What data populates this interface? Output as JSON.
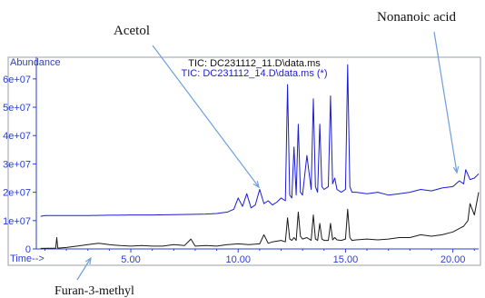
{
  "annotations": {
    "acetol": "Acetol",
    "nonanoic": "Nonanoic acid",
    "furan": "Furan-3-methyl"
  },
  "header": {
    "abundance": "Abundance",
    "tic_black": "TIC: DC231112_11.D\\data.ms",
    "tic_blue": "TIC: DC231112_14.D\\data.ms (*)",
    "time_label": "Time-->"
  },
  "colors": {
    "series_black": "#1a1a1a",
    "series_blue": "#1c1cd6",
    "label_blue": "#2a3fd0",
    "annotation_arrow": "#6f9fd8",
    "frame": "#9aa0a8"
  },
  "chart_data": {
    "type": "line",
    "xlabel": "Time-->",
    "ylabel": "Abundance",
    "xlim": [
      0.6,
      21.2
    ],
    "ylim": [
      0,
      67000000
    ],
    "x_ticks": [
      5,
      10,
      15,
      20
    ],
    "x_tick_labels": [
      "5.00",
      "10.00",
      "15.00",
      "20.00"
    ],
    "y_ticks": [
      0,
      10000000,
      20000000,
      30000000,
      40000000,
      50000000,
      60000000
    ],
    "y_tick_labels": [
      "0",
      "1e+07",
      "2e+07",
      "3e+07",
      "4e+07",
      "5e+07",
      "6e+07"
    ],
    "series": [
      {
        "name": "TIC: DC231112_11.D\\data.ms",
        "color": "black",
        "x": [
          0.8,
          1.5,
          1.55,
          1.6,
          2.0,
          2.5,
          3.0,
          3.5,
          4.0,
          4.5,
          5.0,
          5.5,
          6.0,
          6.5,
          7.0,
          7.5,
          7.8,
          8.0,
          8.5,
          9.0,
          9.5,
          10.0,
          10.5,
          11.0,
          11.2,
          11.4,
          11.6,
          12.0,
          12.2,
          12.3,
          12.4,
          12.5,
          12.6,
          12.7,
          12.8,
          12.9,
          13.0,
          13.2,
          13.4,
          13.5,
          13.6,
          13.7,
          13.8,
          13.9,
          14.0,
          14.2,
          14.3,
          14.4,
          14.5,
          14.6,
          14.8,
          15.0,
          15.1,
          15.2,
          15.3,
          15.5,
          16.0,
          16.5,
          17.0,
          17.5,
          18.0,
          18.5,
          19.0,
          19.5,
          20.0,
          20.5,
          20.7,
          20.8,
          21.0,
          21.2
        ],
        "y": [
          200000,
          300000,
          4000000,
          300000,
          500000,
          1000000,
          1500000,
          2000000,
          1500000,
          1200000,
          1000000,
          1200000,
          1000000,
          1000000,
          1500000,
          1200000,
          3500000,
          1000000,
          1200000,
          1000000,
          1500000,
          1800000,
          1500000,
          1800000,
          5000000,
          2000000,
          2500000,
          3000000,
          2500000,
          11000000,
          3500000,
          3000000,
          4000000,
          3000000,
          13000000,
          4500000,
          3500000,
          4000000,
          3000000,
          12000000,
          3500000,
          3000000,
          9000000,
          3500000,
          3000000,
          3000000,
          9000000,
          3200000,
          4000000,
          3200000,
          3000000,
          3500000,
          14000000,
          4000000,
          3000000,
          3200000,
          3500000,
          3200000,
          3500000,
          4000000,
          4000000,
          5000000,
          4500000,
          5000000,
          6000000,
          8000000,
          10000000,
          16000000,
          12000000,
          20000000
        ]
      },
      {
        "name": "TIC: DC231112_14.D\\data.ms (*)",
        "color": "blue",
        "x": [
          0.8,
          1.0,
          2.0,
          3.0,
          4.0,
          5.0,
          6.0,
          7.0,
          8.0,
          8.5,
          9.0,
          9.5,
          9.8,
          10.0,
          10.2,
          10.4,
          10.6,
          10.8,
          11.0,
          11.2,
          11.4,
          11.6,
          11.8,
          12.0,
          12.2,
          12.3,
          12.4,
          12.5,
          12.6,
          12.7,
          12.8,
          12.9,
          13.0,
          13.2,
          13.4,
          13.5,
          13.6,
          13.7,
          13.8,
          13.9,
          14.0,
          14.2,
          14.3,
          14.4,
          14.5,
          14.6,
          14.8,
          15.0,
          15.1,
          15.2,
          15.3,
          15.5,
          16.0,
          16.5,
          17.0,
          17.5,
          18.0,
          18.5,
          19.0,
          19.5,
          20.0,
          20.3,
          20.5,
          20.6,
          20.8,
          21.0,
          21.2
        ],
        "y": [
          11500000,
          11800000,
          11800000,
          11800000,
          11900000,
          12000000,
          12000000,
          12100000,
          12200000,
          12300000,
          12500000,
          13000000,
          14000000,
          18000000,
          15000000,
          19500000,
          14500000,
          15500000,
          21000000,
          16000000,
          17000000,
          15500000,
          16500000,
          18000000,
          17000000,
          58000000,
          19000000,
          18000000,
          36000000,
          19000000,
          44000000,
          20000000,
          19000000,
          33000000,
          21000000,
          53000000,
          22000000,
          20000000,
          44000000,
          22000000,
          21000000,
          22000000,
          54000000,
          23000000,
          25000000,
          21000000,
          20000000,
          21000000,
          65000000,
          22000000,
          20000000,
          20000000,
          19500000,
          20000000,
          19000000,
          19500000,
          20000000,
          21000000,
          20500000,
          21500000,
          22000000,
          24000000,
          23000000,
          28000000,
          24500000,
          25000000,
          26500000
        ]
      }
    ]
  }
}
